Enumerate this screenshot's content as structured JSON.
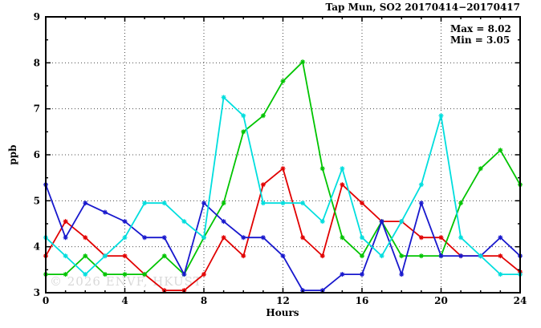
{
  "title": "Tap Mun, SO2 20170414−20170417",
  "annotation": {
    "max_label": "Max = 8.02",
    "min_label": "Min = 3.05"
  },
  "watermark": "© 2026 ENVF, HKUST",
  "chart_data": {
    "type": "line",
    "title": "Tap Mun, SO2 20170414−20170417",
    "xlabel": "Hours",
    "ylabel": "ppb",
    "xlim": [
      0,
      24
    ],
    "ylim": [
      3,
      9
    ],
    "x_ticks": [
      0,
      4,
      8,
      12,
      16,
      20,
      24
    ],
    "y_ticks": [
      3,
      4,
      5,
      6,
      7,
      8,
      9
    ],
    "x_minor_step": 1,
    "y_minor_step": 0.5,
    "grid": "dotted major gridlines, mirrored inward ticks",
    "legend_position": "none",
    "stats": {
      "max": 8.02,
      "min": 3.05
    },
    "x": [
      0,
      1,
      2,
      3,
      4,
      5,
      6,
      7,
      8,
      9,
      10,
      11,
      12,
      13,
      14,
      15,
      16,
      17,
      18,
      19,
      20,
      21,
      22,
      23,
      24
    ],
    "series": [
      {
        "name": "red",
        "color": "#e10000",
        "values": [
          3.8,
          4.55,
          4.2,
          3.8,
          3.8,
          3.4,
          3.05,
          3.05,
          3.4,
          4.2,
          3.8,
          5.35,
          5.7,
          4.2,
          3.8,
          5.35,
          4.95,
          4.55,
          4.55,
          4.2,
          4.2,
          3.8,
          3.8,
          3.8,
          3.45
        ]
      },
      {
        "name": "green",
        "color": "#00c400",
        "values": [
          3.4,
          3.4,
          3.8,
          3.4,
          3.4,
          3.4,
          3.8,
          3.4,
          4.2,
          4.95,
          6.5,
          6.85,
          7.6,
          8.02,
          5.7,
          4.2,
          3.8,
          4.55,
          3.8,
          3.8,
          3.8,
          4.95,
          5.7,
          6.1,
          5.35
        ]
      },
      {
        "name": "blue",
        "color": "#1818cd",
        "values": [
          5.35,
          4.2,
          4.95,
          4.75,
          4.55,
          4.2,
          4.2,
          3.4,
          4.95,
          4.55,
          4.2,
          4.2,
          3.8,
          3.05,
          3.05,
          3.4,
          3.4,
          4.55,
          3.4,
          4.95,
          3.8,
          3.8,
          3.8,
          4.2,
          3.8
        ]
      },
      {
        "name": "cyan",
        "color": "#00dede",
        "values": [
          4.2,
          3.8,
          3.4,
          3.8,
          4.2,
          4.95,
          4.95,
          4.55,
          4.2,
          7.25,
          6.85,
          4.95,
          4.95,
          4.95,
          4.55,
          5.7,
          4.2,
          3.8,
          4.55,
          5.35,
          6.85,
          4.2,
          3.8,
          3.4,
          3.4
        ]
      }
    ]
  }
}
